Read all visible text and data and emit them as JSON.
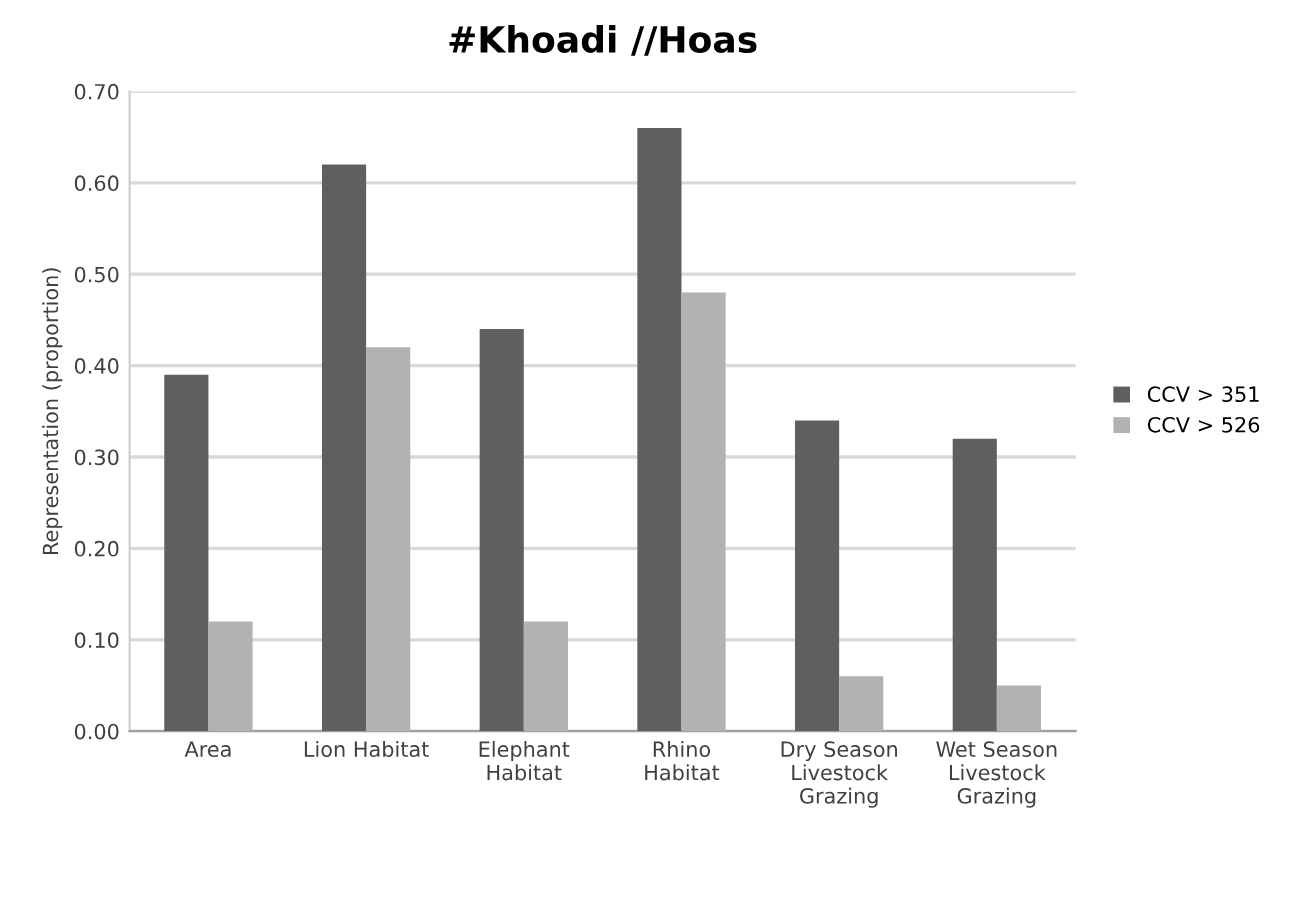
{
  "chart_data": {
    "type": "bar",
    "title": "#Khoadi //Hoas",
    "ylabel": "Representation (proportion)",
    "categories": [
      "Area",
      "Lion Habitat",
      "Elephant\nHabitat",
      "Rhino\nHabitat",
      "Dry Season\nLivestock\nGrazing",
      "Wet Season\nLivestock\nGrazing"
    ],
    "series": [
      {
        "name": "CCV > 351",
        "color": "#5f5f5f",
        "values": [
          0.39,
          0.62,
          0.44,
          0.66,
          0.34,
          0.32
        ]
      },
      {
        "name": "CCV > 526",
        "color": "#b2b2b2",
        "values": [
          0.12,
          0.42,
          0.12,
          0.48,
          0.06,
          0.05
        ]
      }
    ],
    "ylim": [
      0,
      0.7
    ],
    "yticks": [
      {
        "value": 0,
        "label": "0.00"
      },
      {
        "value": 0.1,
        "label": "0.10"
      },
      {
        "value": 0.2,
        "label": "0.20"
      },
      {
        "value": 0.3,
        "label": "0.30"
      },
      {
        "value": 0.4,
        "label": "0.40"
      },
      {
        "value": 0.5,
        "label": "0.50"
      },
      {
        "value": 0.6,
        "label": "0.60"
      },
      {
        "value": 0.7,
        "label": "0.70"
      }
    ],
    "grid": "y",
    "legend": "right"
  }
}
